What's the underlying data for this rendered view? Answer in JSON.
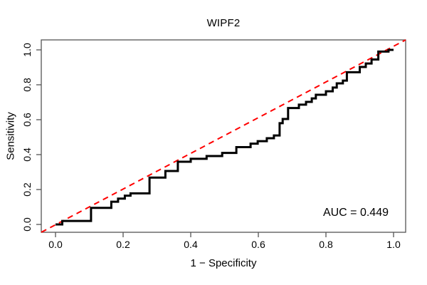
{
  "chart": {
    "title": "WIPF2",
    "xlabel": "1 − Specificity",
    "ylabel": "Sensitivity",
    "auc_label": "AUC = 0.449"
  },
  "chart_data": {
    "type": "line",
    "subtype": "roc-step-curve",
    "title": "WIPF2",
    "xlabel": "1 − Specificity",
    "ylabel": "Sensitivity",
    "xlim": [
      -0.04,
      1.04
    ],
    "ylim": [
      -0.04,
      1.04
    ],
    "grid": false,
    "legend": null,
    "x_ticks": [
      0.0,
      0.2,
      0.4,
      0.6,
      0.8,
      1.0
    ],
    "y_ticks": [
      0.0,
      0.2,
      0.4,
      0.6,
      0.8,
      1.0
    ],
    "x_tick_labels": [
      "0.0",
      "0.2",
      "0.4",
      "0.6",
      "0.8",
      "1.0"
    ],
    "y_tick_labels": [
      "0.0",
      "0.2",
      "0.4",
      "0.6",
      "0.8",
      "1.0"
    ],
    "annotation": {
      "text": "AUC = 0.449",
      "value": 0.449,
      "position": "bottom-right"
    },
    "reference_line": {
      "name": "chance-diagonal",
      "equation": "y = x",
      "color": "#ff0000",
      "style": "dashed",
      "width": 2,
      "dash": [
        8,
        6
      ]
    },
    "series": [
      {
        "name": "ROC curve",
        "color": "#000000",
        "width": 3,
        "step": true,
        "points": [
          [
            0.0,
            0.0
          ],
          [
            0.02,
            0.0
          ],
          [
            0.02,
            0.02
          ],
          [
            0.105,
            0.02
          ],
          [
            0.105,
            0.095
          ],
          [
            0.165,
            0.095
          ],
          [
            0.165,
            0.13
          ],
          [
            0.185,
            0.13
          ],
          [
            0.185,
            0.148
          ],
          [
            0.205,
            0.148
          ],
          [
            0.205,
            0.165
          ],
          [
            0.222,
            0.165
          ],
          [
            0.222,
            0.178
          ],
          [
            0.278,
            0.178
          ],
          [
            0.278,
            0.268
          ],
          [
            0.325,
            0.268
          ],
          [
            0.325,
            0.306
          ],
          [
            0.362,
            0.306
          ],
          [
            0.362,
            0.359
          ],
          [
            0.4,
            0.359
          ],
          [
            0.4,
            0.376
          ],
          [
            0.447,
            0.376
          ],
          [
            0.447,
            0.392
          ],
          [
            0.493,
            0.392
          ],
          [
            0.493,
            0.41
          ],
          [
            0.535,
            0.41
          ],
          [
            0.535,
            0.443
          ],
          [
            0.577,
            0.443
          ],
          [
            0.577,
            0.463
          ],
          [
            0.598,
            0.463
          ],
          [
            0.598,
            0.477
          ],
          [
            0.625,
            0.477
          ],
          [
            0.625,
            0.494
          ],
          [
            0.646,
            0.494
          ],
          [
            0.646,
            0.51
          ],
          [
            0.663,
            0.51
          ],
          [
            0.663,
            0.58
          ],
          [
            0.672,
            0.58
          ],
          [
            0.672,
            0.604
          ],
          [
            0.688,
            0.604
          ],
          [
            0.688,
            0.667
          ],
          [
            0.72,
            0.667
          ],
          [
            0.72,
            0.686
          ],
          [
            0.741,
            0.686
          ],
          [
            0.741,
            0.702
          ],
          [
            0.758,
            0.702
          ],
          [
            0.758,
            0.722
          ],
          [
            0.77,
            0.722
          ],
          [
            0.77,
            0.743
          ],
          [
            0.8,
            0.743
          ],
          [
            0.8,
            0.763
          ],
          [
            0.82,
            0.763
          ],
          [
            0.82,
            0.784
          ],
          [
            0.832,
            0.784
          ],
          [
            0.832,
            0.808
          ],
          [
            0.85,
            0.808
          ],
          [
            0.85,
            0.824
          ],
          [
            0.862,
            0.824
          ],
          [
            0.862,
            0.872
          ],
          [
            0.9,
            0.872
          ],
          [
            0.9,
            0.902
          ],
          [
            0.918,
            0.902
          ],
          [
            0.918,
            0.922
          ],
          [
            0.935,
            0.922
          ],
          [
            0.935,
            0.945
          ],
          [
            0.955,
            0.945
          ],
          [
            0.955,
            0.99
          ],
          [
            0.985,
            0.99
          ],
          [
            0.985,
            1.0
          ],
          [
            1.0,
            1.0
          ]
        ]
      }
    ],
    "colors": {
      "curve": "#000000",
      "reference": "#ff0000",
      "axis": "#555555",
      "text": "#000000"
    }
  }
}
